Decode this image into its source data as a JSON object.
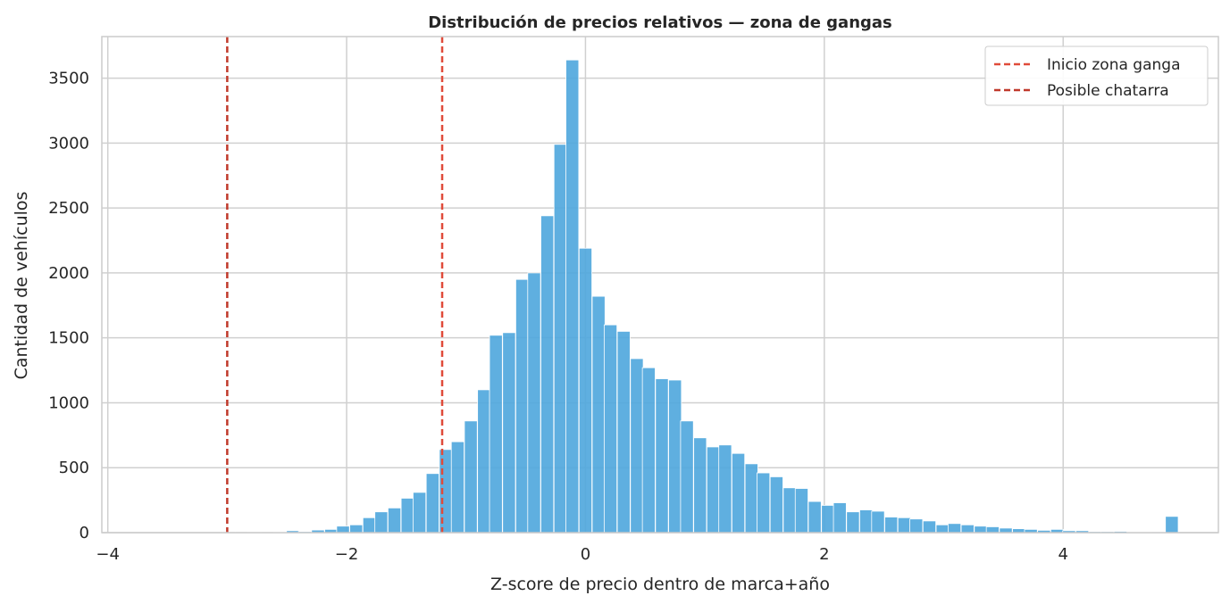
{
  "chart_data": {
    "type": "bar",
    "title": "Distribución de precios relativos — zona de gangas",
    "xlabel": "Z-score de precio dentro de marca+año",
    "ylabel": "Cantidad de vehículos",
    "xlim": [
      -4.05,
      5.3
    ],
    "ylim": [
      0,
      3820
    ],
    "xticks": [
      -4,
      -2,
      0,
      2,
      4
    ],
    "xtick_labels": [
      "−4",
      "−2",
      "0",
      "2",
      "4"
    ],
    "yticks": [
      0,
      500,
      1000,
      1500,
      2000,
      2500,
      3000,
      3500
    ],
    "ytick_labels": [
      "0",
      "500",
      "1000",
      "1500",
      "2000",
      "2500",
      "3000",
      "3500"
    ],
    "grid": true,
    "legend_position": "top-right",
    "bin_width": 0.107,
    "bins": [
      {
        "x": -3.95,
        "y": 1
      },
      {
        "x": -3.84,
        "y": 1
      },
      {
        "x": -3.73,
        "y": 1
      },
      {
        "x": -3.63,
        "y": 1
      },
      {
        "x": -3.52,
        "y": 1
      },
      {
        "x": -3.41,
        "y": 1
      },
      {
        "x": -3.31,
        "y": 1
      },
      {
        "x": -3.2,
        "y": 1
      },
      {
        "x": -3.09,
        "y": 1
      },
      {
        "x": -2.99,
        "y": 2
      },
      {
        "x": -2.88,
        "y": 2
      },
      {
        "x": -2.77,
        "y": 3
      },
      {
        "x": -2.67,
        "y": 3
      },
      {
        "x": -2.56,
        "y": 5
      },
      {
        "x": -2.45,
        "y": 15
      },
      {
        "x": -2.35,
        "y": 8
      },
      {
        "x": -2.24,
        "y": 20
      },
      {
        "x": -2.13,
        "y": 25
      },
      {
        "x": -2.03,
        "y": 50
      },
      {
        "x": -1.92,
        "y": 60
      },
      {
        "x": -1.81,
        "y": 115
      },
      {
        "x": -1.71,
        "y": 160
      },
      {
        "x": -1.6,
        "y": 190
      },
      {
        "x": -1.49,
        "y": 265
      },
      {
        "x": -1.39,
        "y": 310
      },
      {
        "x": -1.28,
        "y": 455
      },
      {
        "x": -1.17,
        "y": 640
      },
      {
        "x": -1.07,
        "y": 700
      },
      {
        "x": -0.96,
        "y": 860
      },
      {
        "x": -0.85,
        "y": 1100
      },
      {
        "x": -0.75,
        "y": 1520
      },
      {
        "x": -0.64,
        "y": 1540
      },
      {
        "x": -0.53,
        "y": 1950
      },
      {
        "x": -0.43,
        "y": 2000
      },
      {
        "x": -0.32,
        "y": 2440
      },
      {
        "x": -0.21,
        "y": 2990
      },
      {
        "x": -0.11,
        "y": 3640
      },
      {
        "x": 0.0,
        "y": 2190
      },
      {
        "x": 0.11,
        "y": 1820
      },
      {
        "x": 0.21,
        "y": 1600
      },
      {
        "x": 0.32,
        "y": 1550
      },
      {
        "x": 0.43,
        "y": 1340
      },
      {
        "x": 0.53,
        "y": 1270
      },
      {
        "x": 0.64,
        "y": 1185
      },
      {
        "x": 0.75,
        "y": 1175
      },
      {
        "x": 0.85,
        "y": 860
      },
      {
        "x": 0.96,
        "y": 730
      },
      {
        "x": 1.07,
        "y": 660
      },
      {
        "x": 1.17,
        "y": 675
      },
      {
        "x": 1.28,
        "y": 610
      },
      {
        "x": 1.39,
        "y": 530
      },
      {
        "x": 1.49,
        "y": 460
      },
      {
        "x": 1.6,
        "y": 430
      },
      {
        "x": 1.71,
        "y": 345
      },
      {
        "x": 1.81,
        "y": 340
      },
      {
        "x": 1.92,
        "y": 240
      },
      {
        "x": 2.03,
        "y": 210
      },
      {
        "x": 2.13,
        "y": 230
      },
      {
        "x": 2.24,
        "y": 160
      },
      {
        "x": 2.35,
        "y": 175
      },
      {
        "x": 2.45,
        "y": 165
      },
      {
        "x": 2.56,
        "y": 120
      },
      {
        "x": 2.67,
        "y": 115
      },
      {
        "x": 2.77,
        "y": 105
      },
      {
        "x": 2.88,
        "y": 90
      },
      {
        "x": 2.99,
        "y": 60
      },
      {
        "x": 3.09,
        "y": 70
      },
      {
        "x": 3.2,
        "y": 60
      },
      {
        "x": 3.31,
        "y": 50
      },
      {
        "x": 3.41,
        "y": 45
      },
      {
        "x": 3.52,
        "y": 35
      },
      {
        "x": 3.63,
        "y": 30
      },
      {
        "x": 3.73,
        "y": 25
      },
      {
        "x": 3.84,
        "y": 18
      },
      {
        "x": 3.95,
        "y": 25
      },
      {
        "x": 4.05,
        "y": 15
      },
      {
        "x": 4.16,
        "y": 15
      },
      {
        "x": 4.27,
        "y": 8
      },
      {
        "x": 4.37,
        "y": 8
      },
      {
        "x": 4.48,
        "y": 10
      },
      {
        "x": 4.59,
        "y": 6
      },
      {
        "x": 4.69,
        "y": 6
      },
      {
        "x": 4.8,
        "y": 4
      },
      {
        "x": 4.91,
        "y": 125
      }
    ],
    "bar_color": "#4ea6dd",
    "vlines": [
      {
        "x": -1.2,
        "label": "Inicio zona ganga",
        "color": "#e04b3a",
        "style": "dashed"
      },
      {
        "x": -3.0,
        "label": "Posible chatarra",
        "color": "#c0392b",
        "style": "dashed"
      }
    ]
  }
}
